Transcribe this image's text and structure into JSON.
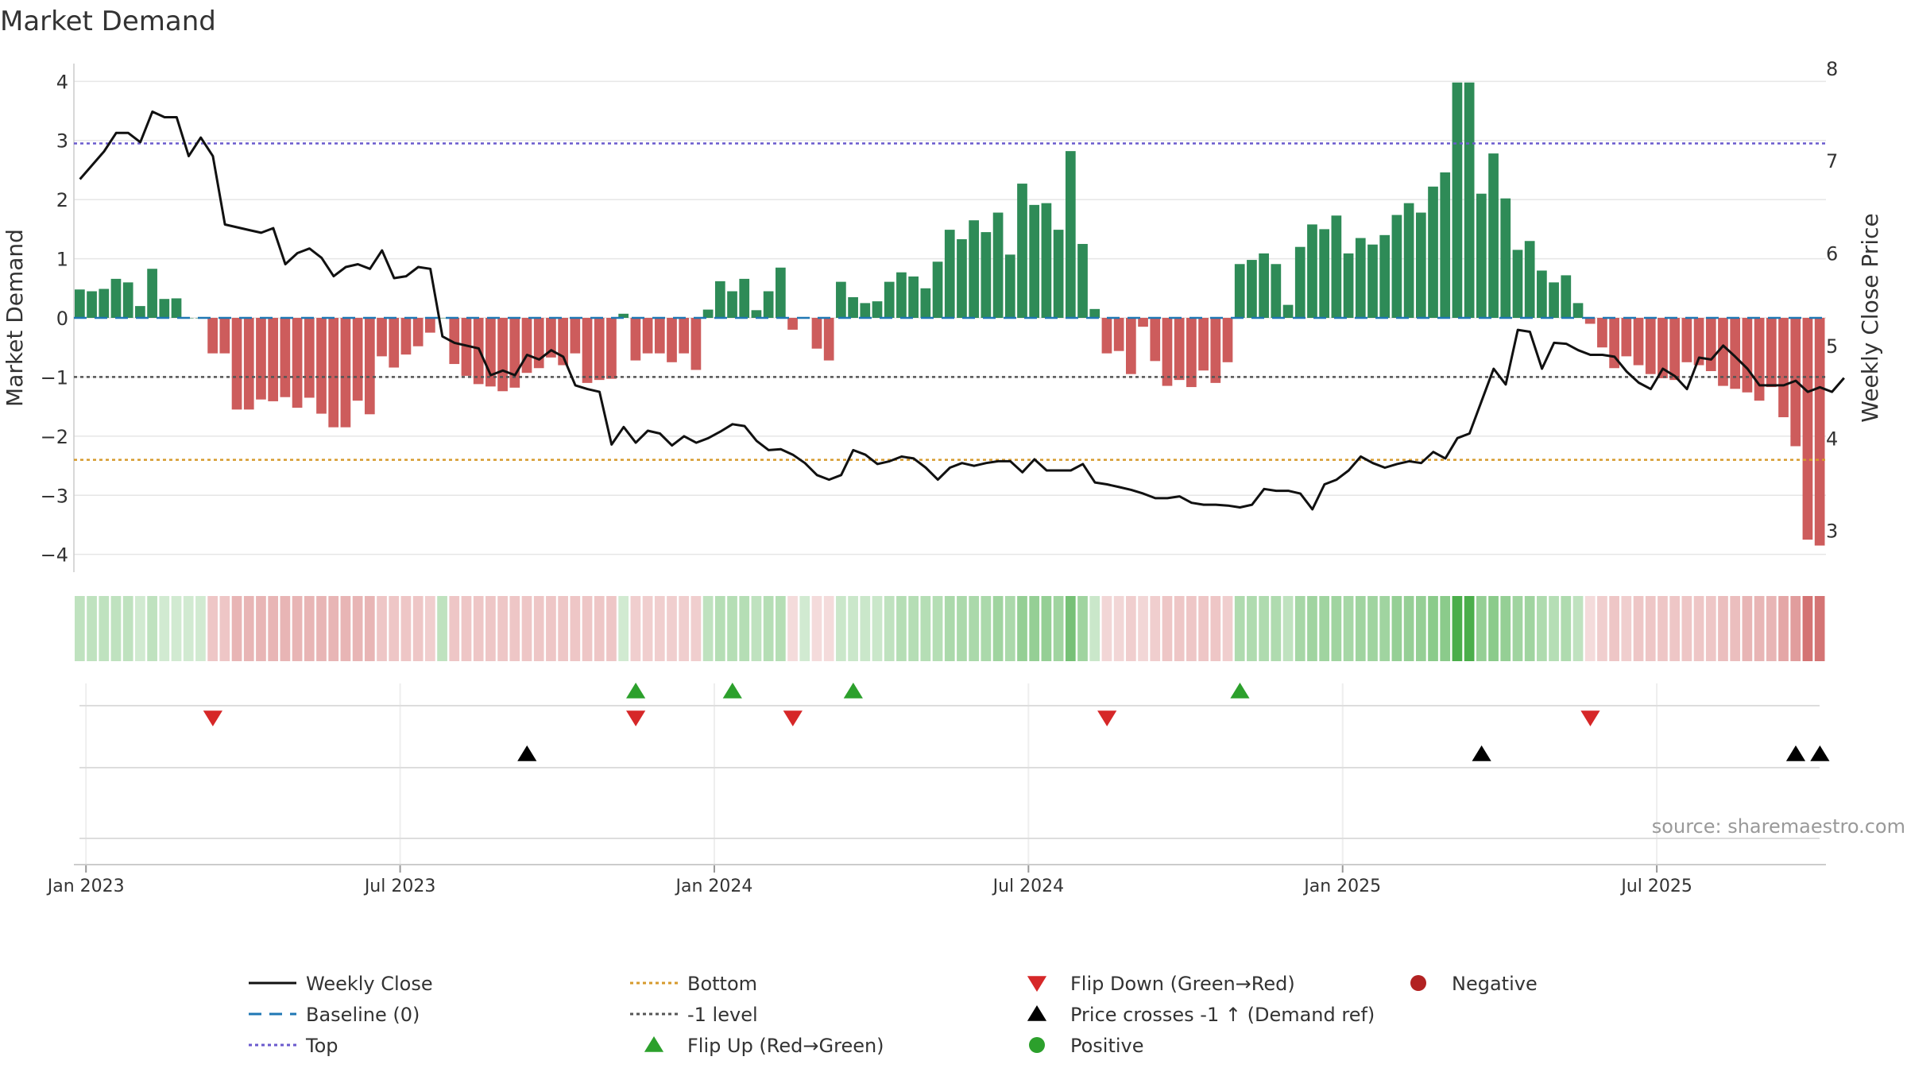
{
  "chart_data": {
    "type": "bar+line",
    "title": "Market Demand",
    "ylabel_left": "Market Demand",
    "ylabel_right": "Weekly Close Price",
    "ylim_left": [
      -4.3,
      4.3
    ],
    "ylim_right": [
      2.55,
      8.05
    ],
    "yticks_left": [
      4,
      3,
      2,
      1,
      0,
      -1,
      -2,
      -3,
      -4
    ],
    "yticks_left_labels": [
      "4",
      "3",
      "2",
      "1",
      "0",
      "−1",
      "−2",
      "−3",
      "−4"
    ],
    "yticks_right": [
      8,
      7,
      6,
      5,
      4,
      3
    ],
    "yticks_right_labels": [
      "8",
      "7",
      "6",
      "5",
      "4",
      "3"
    ],
    "x_start": "2022-12-25",
    "x_end": "2025-09-21",
    "xtick_labels": [
      "Jan 2023",
      "Jul 2023",
      "Jan 2024",
      "Jul 2024",
      "Jan 2025",
      "Jul 2025"
    ],
    "xtick_weeks": [
      1,
      27,
      53,
      79,
      105,
      131
    ],
    "reference_lines": {
      "top": 2.95,
      "bottom": -2.4,
      "minus_one": -1,
      "baseline": 0
    },
    "demand": [
      0.48,
      0.45,
      0.49,
      0.66,
      0.6,
      0.2,
      0.83,
      0.32,
      0.33,
      0,
      0,
      -0.6,
      -0.6,
      -1.55,
      -1.55,
      -1.38,
      -1.41,
      -1.34,
      -1.52,
      -1.35,
      -1.62,
      -1.85,
      -1.85,
      -1.4,
      -1.63,
      -0.65,
      -0.84,
      -0.62,
      -0.48,
      -0.25,
      0,
      -0.78,
      -0.98,
      -1.12,
      -1.16,
      -1.24,
      -1.18,
      -0.93,
      -0.85,
      -0.67,
      -0.8,
      -0.6,
      -1.1,
      -1.05,
      -1.03,
      0.07,
      -0.72,
      -0.6,
      -0.6,
      -0.75,
      -0.6,
      -0.88,
      0.14,
      0.62,
      0.45,
      0.66,
      0.13,
      0.45,
      0.85,
      -0.2,
      0,
      -0.52,
      -0.72,
      0.61,
      0.35,
      0.25,
      0.28,
      0.61,
      0.77,
      0.7,
      0.5,
      0.95,
      1.49,
      1.33,
      1.65,
      1.45,
      1.78,
      1.07,
      2.27,
      1.91,
      1.94,
      1.49,
      2.82,
      1.25,
      0.15,
      -0.6,
      -0.56,
      -0.95,
      -0.15,
      -0.73,
      -1.15,
      -1.05,
      -1.17,
      -0.89,
      -1.1,
      -0.75,
      0.91,
      0.98,
      1.09,
      0.91,
      0.22,
      1.2,
      1.58,
      1.5,
      1.73,
      1.09,
      1.35,
      1.24,
      1.4,
      1.74,
      1.94,
      1.78,
      2.22,
      2.46,
      3.98,
      3.98,
      2.1,
      2.78,
      2.02,
      1.15,
      1.3,
      0.8,
      0.6,
      0.72,
      0.25,
      -0.1,
      -0.5,
      -0.85,
      -0.65,
      -0.8,
      -0.95,
      -1.02,
      -1.05,
      -0.75,
      -0.8,
      -0.9,
      -1.15,
      -1.2,
      -1.26,
      -1.4,
      -1.17,
      -1.68,
      -2.17,
      -3.75,
      -3.85
    ],
    "close": [
      6.8,
      6.95,
      7.1,
      7.3,
      7.3,
      7.2,
      7.53,
      7.47,
      7.47,
      7.05,
      7.25,
      7.05,
      6.31,
      6.28,
      6.25,
      6.22,
      6.27,
      5.88,
      6.0,
      6.05,
      5.95,
      5.75,
      5.85,
      5.88,
      5.83,
      6.03,
      5.73,
      5.75,
      5.85,
      5.83,
      5.1,
      5.03,
      5.0,
      4.97,
      4.68,
      4.73,
      4.68,
      4.9,
      4.85,
      4.95,
      4.88,
      4.57,
      4.53,
      4.5,
      3.93,
      4.12,
      3.95,
      4.08,
      4.05,
      3.92,
      4.02,
      3.95,
      4.0,
      4.07,
      4.15,
      4.13,
      3.97,
      3.87,
      3.88,
      3.82,
      3.73,
      3.6,
      3.55,
      3.6,
      3.87,
      3.82,
      3.72,
      3.75,
      3.8,
      3.78,
      3.68,
      3.55,
      3.68,
      3.73,
      3.7,
      3.73,
      3.75,
      3.75,
      3.63,
      3.77,
      3.65,
      3.65,
      3.65,
      3.72,
      3.52,
      3.5,
      3.47,
      3.44,
      3.4,
      3.35,
      3.35,
      3.37,
      3.3,
      3.28,
      3.28,
      3.27,
      3.25,
      3.28,
      3.45,
      3.43,
      3.43,
      3.4,
      3.23,
      3.5,
      3.55,
      3.65,
      3.8,
      3.73,
      3.68,
      3.72,
      3.75,
      3.73,
      3.85,
      3.78,
      4.0,
      4.05,
      4.4,
      4.75,
      4.58,
      5.17,
      5.15,
      4.75,
      5.03,
      5.02,
      4.95,
      4.9,
      4.9,
      4.88,
      4.72,
      4.6,
      4.53,
      4.75,
      4.67,
      4.53,
      4.87,
      4.85,
      5.0,
      4.88,
      4.75,
      4.57,
      4.57,
      4.57,
      4.62,
      4.5,
      4.55,
      4.5,
      4.65
    ],
    "shade_alpha": [
      0.3,
      0.3,
      0.3,
      0.3,
      0.3,
      0.22,
      0.3,
      0.22,
      0.22,
      0.22,
      0.22,
      0.35,
      0.35,
      0.45,
      0.45,
      0.45,
      0.45,
      0.45,
      0.45,
      0.45,
      0.45,
      0.45,
      0.45,
      0.45,
      0.45,
      0.35,
      0.35,
      0.35,
      0.35,
      0.3,
      0.3,
      0.35,
      0.35,
      0.35,
      0.35,
      0.35,
      0.35,
      0.35,
      0.35,
      0.35,
      0.35,
      0.35,
      0.35,
      0.35,
      0.35,
      0.22,
      0.3,
      0.3,
      0.3,
      0.3,
      0.3,
      0.3,
      0.3,
      0.35,
      0.35,
      0.35,
      0.3,
      0.35,
      0.35,
      0.22,
      0.22,
      0.22,
      0.22,
      0.25,
      0.25,
      0.25,
      0.25,
      0.3,
      0.35,
      0.35,
      0.35,
      0.35,
      0.4,
      0.4,
      0.4,
      0.4,
      0.45,
      0.4,
      0.5,
      0.5,
      0.5,
      0.45,
      0.65,
      0.45,
      0.25,
      0.25,
      0.25,
      0.3,
      0.25,
      0.3,
      0.35,
      0.35,
      0.35,
      0.35,
      0.35,
      0.3,
      0.38,
      0.38,
      0.38,
      0.38,
      0.3,
      0.42,
      0.45,
      0.45,
      0.45,
      0.42,
      0.45,
      0.45,
      0.45,
      0.5,
      0.5,
      0.5,
      0.55,
      0.55,
      0.85,
      0.85,
      0.5,
      0.55,
      0.5,
      0.45,
      0.45,
      0.38,
      0.35,
      0.38,
      0.3,
      0.22,
      0.3,
      0.35,
      0.3,
      0.35,
      0.35,
      0.35,
      0.35,
      0.35,
      0.35,
      0.35,
      0.4,
      0.4,
      0.45,
      0.45,
      0.45,
      0.55,
      0.6,
      0.85,
      0.85
    ],
    "flip_up_weeks": [
      46,
      54,
      64,
      96
    ],
    "flip_down_weeks": [
      11,
      46,
      59,
      85,
      125
    ],
    "price_cross_weeks": [
      37,
      116,
      142,
      144
    ],
    "source": "source: sharemaestro.com",
    "legend": [
      {
        "label": "Weekly Close",
        "symbol": "solid-line",
        "color": "#111111"
      },
      {
        "label": "Baseline (0)",
        "symbol": "dashed-line",
        "color": "#1f77b4"
      },
      {
        "label": "Top",
        "symbol": "dotted-line",
        "color": "#6a5acd"
      },
      {
        "label": "Bottom",
        "symbol": "dotted-line",
        "color": "#d69a2c"
      },
      {
        "label": "-1 level",
        "symbol": "dotted-line",
        "color": "#555555"
      },
      {
        "label": "Flip Up (Red→Green)",
        "symbol": "triangle-up",
        "color": "#2ca02c"
      },
      {
        "label": "Flip Down (Green→Red)",
        "symbol": "triangle-down",
        "color": "#d62728"
      },
      {
        "label": "Price crosses -1 ↑ (Demand ref)",
        "symbol": "triangle-up",
        "color": "#000000"
      },
      {
        "label": "Positive",
        "symbol": "dot",
        "color": "#2ca02c"
      },
      {
        "label": "Negative",
        "symbol": "dot",
        "color": "#b22222"
      }
    ],
    "colors": {
      "positive_bar": "#2e8b57",
      "negative_bar": "#cd5c5c",
      "shade_positive": "#2ca02c",
      "shade_negative": "#cd5c5c",
      "line": "#111111",
      "grid": "#e6e6e6",
      "axis": "#cccccc"
    }
  }
}
